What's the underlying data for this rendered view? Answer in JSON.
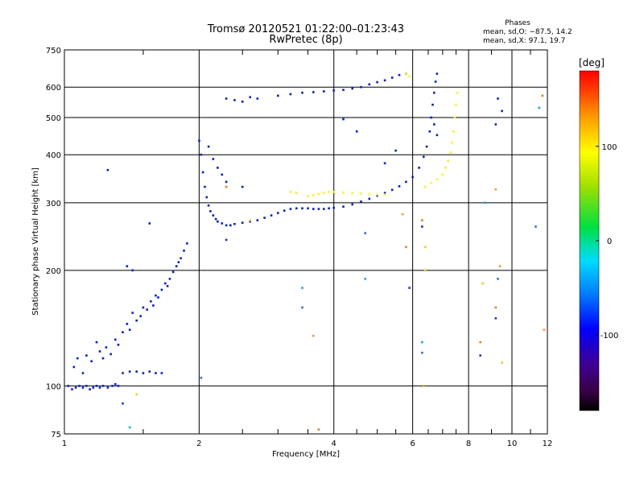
{
  "chart_data": {
    "type": "scatter",
    "title": "Tromsø 20120521 01:22:00–01:23:43",
    "subtitle": "RwPretec (8p)",
    "xlabel": "Frequency [MHz]",
    "ylabel": "Stationary phase Virtual Height [km]",
    "xscale": "log",
    "yscale": "log",
    "xlim": [
      1,
      12
    ],
    "ylim": [
      75,
      750
    ],
    "x_ticks": [
      1,
      2,
      4,
      6,
      8,
      10,
      12
    ],
    "y_ticks": [
      75,
      100,
      200,
      300,
      400,
      500,
      600,
      750
    ],
    "grid": true,
    "phases_box": {
      "title": "Phases",
      "line1": "mean, sd,O: −87.5, 14.2",
      "line2": "mean, sd,X:  97.1, 19.7"
    },
    "colorbar": {
      "label": "[deg]",
      "min": -180,
      "max": 180,
      "ticks": [
        100,
        0,
        -100
      ]
    },
    "series": [
      {
        "mode": "O",
        "phase_mean": -87.5,
        "points": [
          [
            1.02,
            100
          ],
          [
            1.04,
            98
          ],
          [
            1.06,
            99
          ],
          [
            1.08,
            100
          ],
          [
            1.1,
            99
          ],
          [
            1.12,
            100
          ],
          [
            1.14,
            98
          ],
          [
            1.16,
            99
          ],
          [
            1.18,
            100
          ],
          [
            1.2,
            99
          ],
          [
            1.22,
            100
          ],
          [
            1.25,
            99
          ],
          [
            1.28,
            100
          ],
          [
            1.3,
            101
          ],
          [
            1.32,
            100
          ],
          [
            1.05,
            112
          ],
          [
            1.07,
            118
          ],
          [
            1.1,
            108
          ],
          [
            1.12,
            120
          ],
          [
            1.15,
            116
          ],
          [
            1.18,
            130
          ],
          [
            1.2,
            123
          ],
          [
            1.22,
            118
          ],
          [
            1.24,
            126
          ],
          [
            1.27,
            121
          ],
          [
            1.3,
            132
          ],
          [
            1.32,
            128
          ],
          [
            1.35,
            138
          ],
          [
            1.38,
            145
          ],
          [
            1.4,
            140
          ],
          [
            1.42,
            155
          ],
          [
            1.45,
            148
          ],
          [
            1.48,
            152
          ],
          [
            1.5,
            160
          ],
          [
            1.53,
            158
          ],
          [
            1.56,
            166
          ],
          [
            1.58,
            162
          ],
          [
            1.6,
            172
          ],
          [
            1.62,
            170
          ],
          [
            1.65,
            178
          ],
          [
            1.68,
            185
          ],
          [
            1.7,
            182
          ],
          [
            1.72,
            190
          ],
          [
            1.75,
            198
          ],
          [
            1.78,
            205
          ],
          [
            1.8,
            210
          ],
          [
            1.82,
            215
          ],
          [
            1.85,
            225
          ],
          [
            1.88,
            235
          ],
          [
            1.35,
            108
          ],
          [
            1.4,
            109
          ],
          [
            1.45,
            109
          ],
          [
            1.5,
            108
          ],
          [
            1.55,
            109
          ],
          [
            1.6,
            108
          ],
          [
            1.65,
            108
          ],
          [
            1.38,
            205
          ],
          [
            1.42,
            200
          ],
          [
            1.25,
            365
          ],
          [
            1.55,
            265
          ],
          [
            2.0,
            435
          ],
          [
            2.02,
            400
          ],
          [
            2.04,
            360
          ],
          [
            2.06,
            330
          ],
          [
            2.08,
            310
          ],
          [
            2.1,
            295
          ],
          [
            2.12,
            285
          ],
          [
            2.15,
            278
          ],
          [
            2.18,
            272
          ],
          [
            2.2,
            268
          ],
          [
            2.25,
            265
          ],
          [
            2.3,
            262
          ],
          [
            2.35,
            262
          ],
          [
            2.4,
            264
          ],
          [
            2.5,
            266
          ],
          [
            2.6,
            268
          ],
          [
            2.7,
            270
          ],
          [
            2.8,
            274
          ],
          [
            2.9,
            278
          ],
          [
            3.0,
            282
          ],
          [
            3.1,
            286
          ],
          [
            3.2,
            289
          ],
          [
            3.3,
            290
          ],
          [
            3.4,
            290
          ],
          [
            3.5,
            290
          ],
          [
            3.6,
            289
          ],
          [
            3.7,
            289
          ],
          [
            3.8,
            289
          ],
          [
            3.9,
            290
          ],
          [
            4.0,
            291
          ],
          [
            4.2,
            293
          ],
          [
            4.4,
            297
          ],
          [
            4.6,
            302
          ],
          [
            4.8,
            307
          ],
          [
            5.0,
            313
          ],
          [
            5.2,
            318
          ],
          [
            5.4,
            324
          ],
          [
            5.6,
            331
          ],
          [
            5.8,
            340
          ],
          [
            6.0,
            350
          ],
          [
            6.2,
            370
          ],
          [
            6.35,
            395
          ],
          [
            6.45,
            420
          ],
          [
            6.55,
            460
          ],
          [
            6.6,
            500
          ],
          [
            6.65,
            540
          ],
          [
            6.7,
            580
          ],
          [
            6.75,
            620
          ],
          [
            6.8,
            650
          ],
          [
            2.1,
            420
          ],
          [
            2.15,
            390
          ],
          [
            2.2,
            370
          ],
          [
            2.25,
            355
          ],
          [
            2.3,
            340
          ],
          [
            2.5,
            330
          ],
          [
            2.3,
            560
          ],
          [
            2.4,
            555
          ],
          [
            2.5,
            550
          ],
          [
            2.6,
            565
          ],
          [
            2.7,
            560
          ],
          [
            3.0,
            570
          ],
          [
            3.2,
            575
          ],
          [
            3.4,
            580
          ],
          [
            3.6,
            582
          ],
          [
            3.8,
            585
          ],
          [
            4.0,
            588
          ],
          [
            4.2,
            590
          ],
          [
            4.4,
            595
          ],
          [
            4.6,
            600
          ],
          [
            4.8,
            610
          ],
          [
            5.0,
            618
          ],
          [
            5.2,
            625
          ],
          [
            5.4,
            635
          ],
          [
            5.6,
            645
          ],
          [
            5.8,
            650
          ],
          [
            4.2,
            495
          ],
          [
            4.5,
            460
          ],
          [
            5.5,
            410
          ],
          [
            5.2,
            380
          ],
          [
            9.3,
            560
          ],
          [
            9.2,
            480
          ],
          [
            9.5,
            520
          ],
          [
            6.7,
            480
          ],
          [
            6.8,
            450
          ]
        ]
      },
      {
        "mode": "X",
        "phase_mean": 97.1,
        "points": [
          [
            3.5,
            312
          ],
          [
            3.6,
            314
          ],
          [
            3.7,
            316
          ],
          [
            3.8,
            318
          ],
          [
            3.9,
            320
          ],
          [
            4.0,
            320
          ],
          [
            4.2,
            319
          ],
          [
            4.4,
            318
          ],
          [
            4.6,
            317
          ],
          [
            4.8,
            316
          ],
          [
            5.0,
            315
          ],
          [
            5.2,
            315
          ],
          [
            6.4,
            330
          ],
          [
            6.6,
            338
          ],
          [
            6.8,
            345
          ],
          [
            7.0,
            355
          ],
          [
            7.1,
            370
          ],
          [
            7.2,
            385
          ],
          [
            7.3,
            405
          ],
          [
            7.35,
            430
          ],
          [
            7.4,
            460
          ],
          [
            7.45,
            500
          ],
          [
            7.5,
            540
          ],
          [
            7.55,
            580
          ],
          [
            5.8,
            650
          ],
          [
            5.9,
            640
          ],
          [
            3.2,
            320
          ],
          [
            3.3,
            318
          ]
        ]
      },
      {
        "mode": "scattered",
        "points": [
          [
            8.5,
            130
          ],
          [
            8.5,
            120
          ],
          [
            8.6,
            185
          ],
          [
            8.7,
            300
          ],
          [
            9.3,
            190
          ],
          [
            9.4,
            205
          ],
          [
            9.2,
            160
          ],
          [
            9.2,
            150
          ],
          [
            9.5,
            115
          ],
          [
            6.3,
            130
          ],
          [
            6.3,
            122
          ],
          [
            6.35,
            100
          ],
          [
            6.3,
            270
          ],
          [
            6.3,
            260
          ],
          [
            6.4,
            230
          ],
          [
            4.7,
            190
          ],
          [
            4.7,
            250
          ],
          [
            5.7,
            280
          ],
          [
            5.8,
            230
          ],
          [
            5.9,
            180
          ],
          [
            6.4,
            200
          ],
          [
            11.5,
            530
          ],
          [
            11.3,
            260
          ],
          [
            11.8,
            140
          ],
          [
            2.3,
            330
          ],
          [
            2.3,
            240
          ],
          [
            2.6,
            270
          ],
          [
            3.4,
            180
          ],
          [
            3.4,
            160
          ],
          [
            3.6,
            135
          ],
          [
            3.7,
            77
          ],
          [
            1.35,
            90
          ],
          [
            1.45,
            95
          ],
          [
            1.4,
            78
          ],
          [
            2.02,
            105
          ],
          [
            9.2,
            325
          ],
          [
            11.7,
            570
          ]
        ]
      }
    ]
  }
}
